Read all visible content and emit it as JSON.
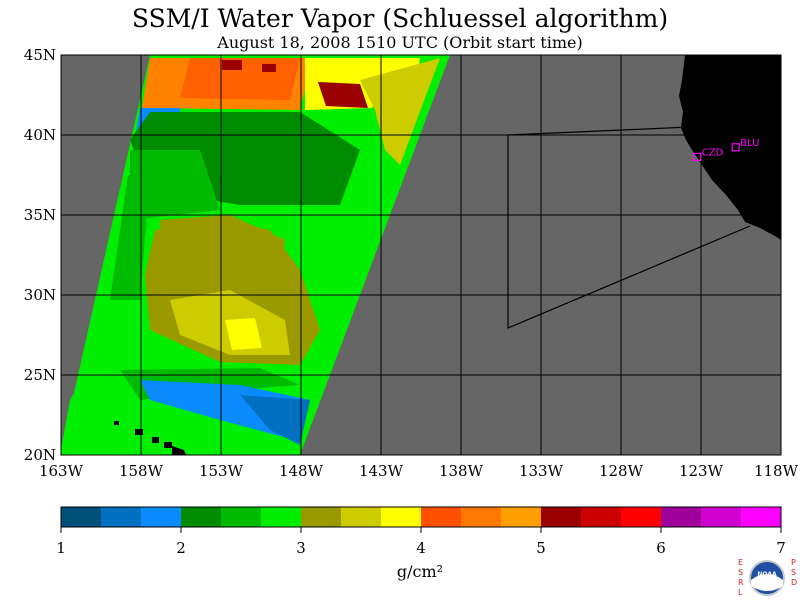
{
  "title": "SSM/I Water Vapor (Schluessel algorithm)",
  "subtitle": "August 18, 2008  1510 UTC  (Orbit start time)",
  "map": {
    "lon_range": [
      -163,
      -118
    ],
    "lat_range": [
      20,
      45
    ],
    "lat_labels": [
      "45N",
      "40N",
      "35N",
      "30N",
      "25N",
      "20N"
    ],
    "lat_values": [
      45,
      40,
      35,
      30,
      25,
      20
    ],
    "lon_labels": [
      "163W",
      "158W",
      "153W",
      "148W",
      "143W",
      "138W",
      "133W",
      "128W",
      "123W",
      "118W"
    ],
    "lon_values": [
      -163,
      -158,
      -153,
      -148,
      -143,
      -138,
      -133,
      -128,
      -123,
      -118
    ],
    "grid": true,
    "background_color": "#666666",
    "land_color": "#000000",
    "stations": [
      {
        "label": "CZD",
        "lon": -123.2,
        "lat": 38.6,
        "color": "#ff00ff"
      },
      {
        "label": "BLU",
        "lon": -120.8,
        "lat": 39.2,
        "color": "#ff00ff"
      }
    ]
  },
  "colorbar": {
    "min": 1,
    "max": 7,
    "tick_labels": [
      "1",
      "2",
      "3",
      "4",
      "5",
      "6",
      "7"
    ],
    "unit": "g/cm²",
    "colors": [
      "#00507a",
      "#0070c0",
      "#0a8cff",
      "#008c00",
      "#00bb00",
      "#00ee00",
      "#9a9a00",
      "#cccc00",
      "#ffff00",
      "#ff5000",
      "#ff7800",
      "#ffa000",
      "#9a0000",
      "#cc0000",
      "#ff0000",
      "#a0009a",
      "#d000d0",
      "#ff00ff"
    ]
  },
  "logo": {
    "left_letters": "ESRL",
    "right_letters": "PSD",
    "badge": "NOAA"
  }
}
